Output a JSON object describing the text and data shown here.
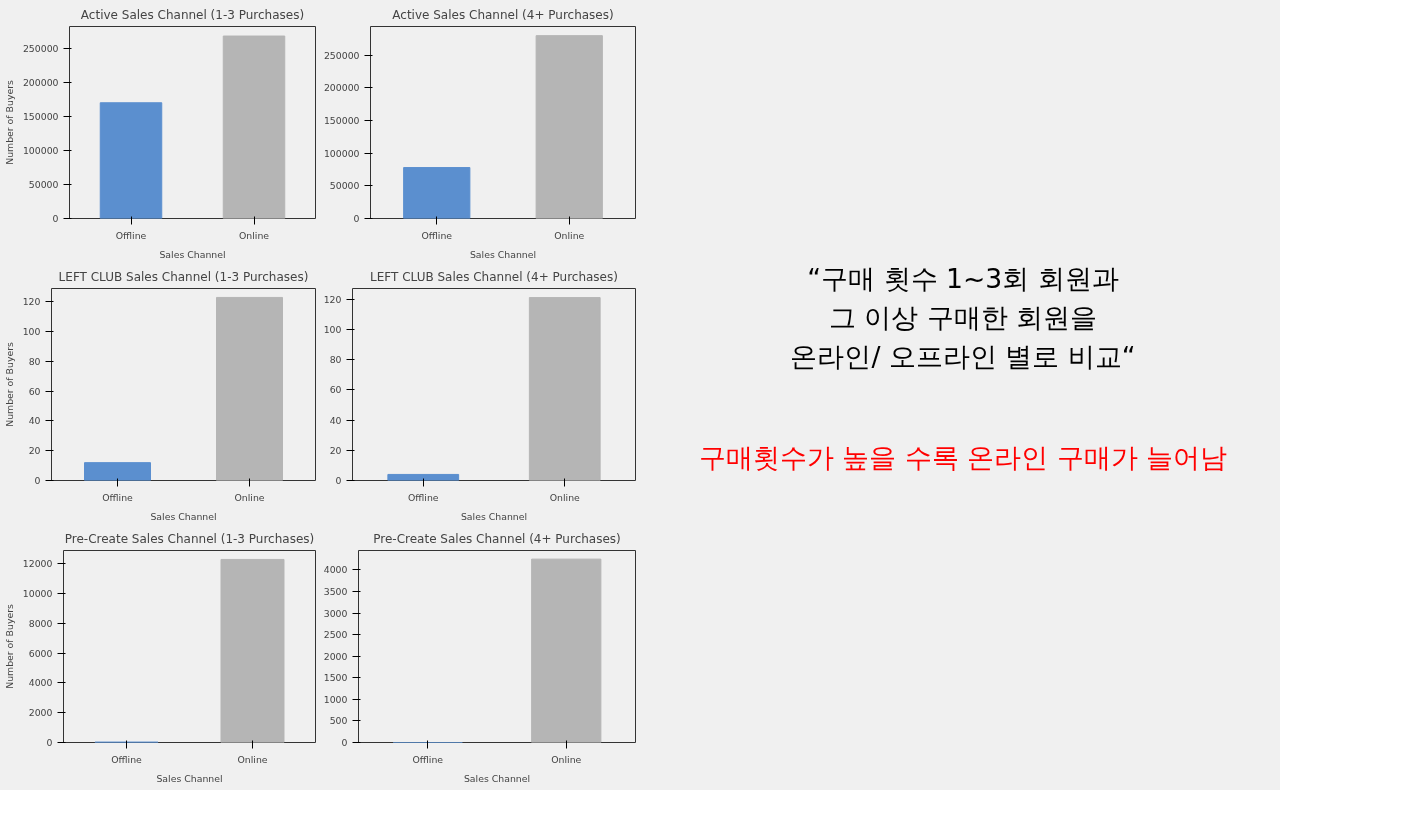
{
  "chart_data": [
    {
      "type": "bar",
      "title": "Active Sales Channel (1-3 Purchases)",
      "xlabel": "Sales Channel",
      "ylabel": "Number of Buyers",
      "categories": [
        "Offline",
        "Online"
      ],
      "values": [
        170000,
        268000
      ],
      "colors": [
        "#5b8fcf",
        "#b5b5b5"
      ],
      "ylim": [
        0,
        282000
      ],
      "yticks": [
        0,
        50000,
        100000,
        150000,
        200000,
        250000
      ],
      "grid": false
    },
    {
      "type": "bar",
      "title": "Active Sales Channel (4+ Purchases)",
      "xlabel": "Sales Channel",
      "categories": [
        "Offline",
        "Online"
      ],
      "values": [
        78000,
        280000
      ],
      "colors": [
        "#5b8fcf",
        "#b5b5b5"
      ],
      "ylim": [
        0,
        294000
      ],
      "yticks": [
        0,
        50000,
        100000,
        150000,
        200000,
        250000
      ],
      "grid": false
    },
    {
      "type": "bar",
      "title": "LEFT CLUB Sales Channel (1-3 Purchases)",
      "xlabel": "Sales Channel",
      "ylabel": "Number of Buyers",
      "categories": [
        "Offline",
        "Online"
      ],
      "values": [
        12,
        123
      ],
      "colors": [
        "#5b8fcf",
        "#b5b5b5"
      ],
      "ylim": [
        0,
        129
      ],
      "yticks": [
        0,
        20,
        40,
        60,
        80,
        100,
        120
      ],
      "grid": false
    },
    {
      "type": "bar",
      "title": "LEFT CLUB Sales Channel (4+ Purchases)",
      "xlabel": "Sales Channel",
      "categories": [
        "Offline",
        "Online"
      ],
      "values": [
        4,
        121
      ],
      "colors": [
        "#5b8fcf",
        "#b5b5b5"
      ],
      "ylim": [
        0,
        127
      ],
      "yticks": [
        0,
        20,
        40,
        60,
        80,
        100,
        120
      ],
      "grid": false
    },
    {
      "type": "bar",
      "title": "Pre-Create Sales Channel (1-3 Purchases)",
      "xlabel": "Sales Channel",
      "ylabel": "Number of Buyers",
      "categories": [
        "Offline",
        "Online"
      ],
      "values": [
        30,
        12300
      ],
      "colors": [
        "#5b8fcf",
        "#b5b5b5"
      ],
      "ylim": [
        0,
        12900
      ],
      "yticks": [
        0,
        2000,
        4000,
        6000,
        8000,
        10000,
        12000
      ],
      "grid": false
    },
    {
      "type": "bar",
      "title": "Pre-Create Sales Channel (4+ Purchases)",
      "xlabel": "Sales Channel",
      "categories": [
        "Offline",
        "Online"
      ],
      "values": [
        0,
        4250
      ],
      "colors": [
        "#5b8fcf",
        "#b5b5b5"
      ],
      "ylim": [
        0,
        4450
      ],
      "yticks": [
        0,
        500,
        1000,
        1500,
        2000,
        2500,
        3000,
        3500,
        4000
      ],
      "grid": false
    },
    {
      "type": "other",
      "annotations": [
        "“구매 횟수 1~3회 회원과\n그 이상 구매한 회원을\n온라인/ 오프라인 별로 비교“",
        "구매횟수가 높을 수록 온라인 구매가 늘어남"
      ]
    }
  ]
}
